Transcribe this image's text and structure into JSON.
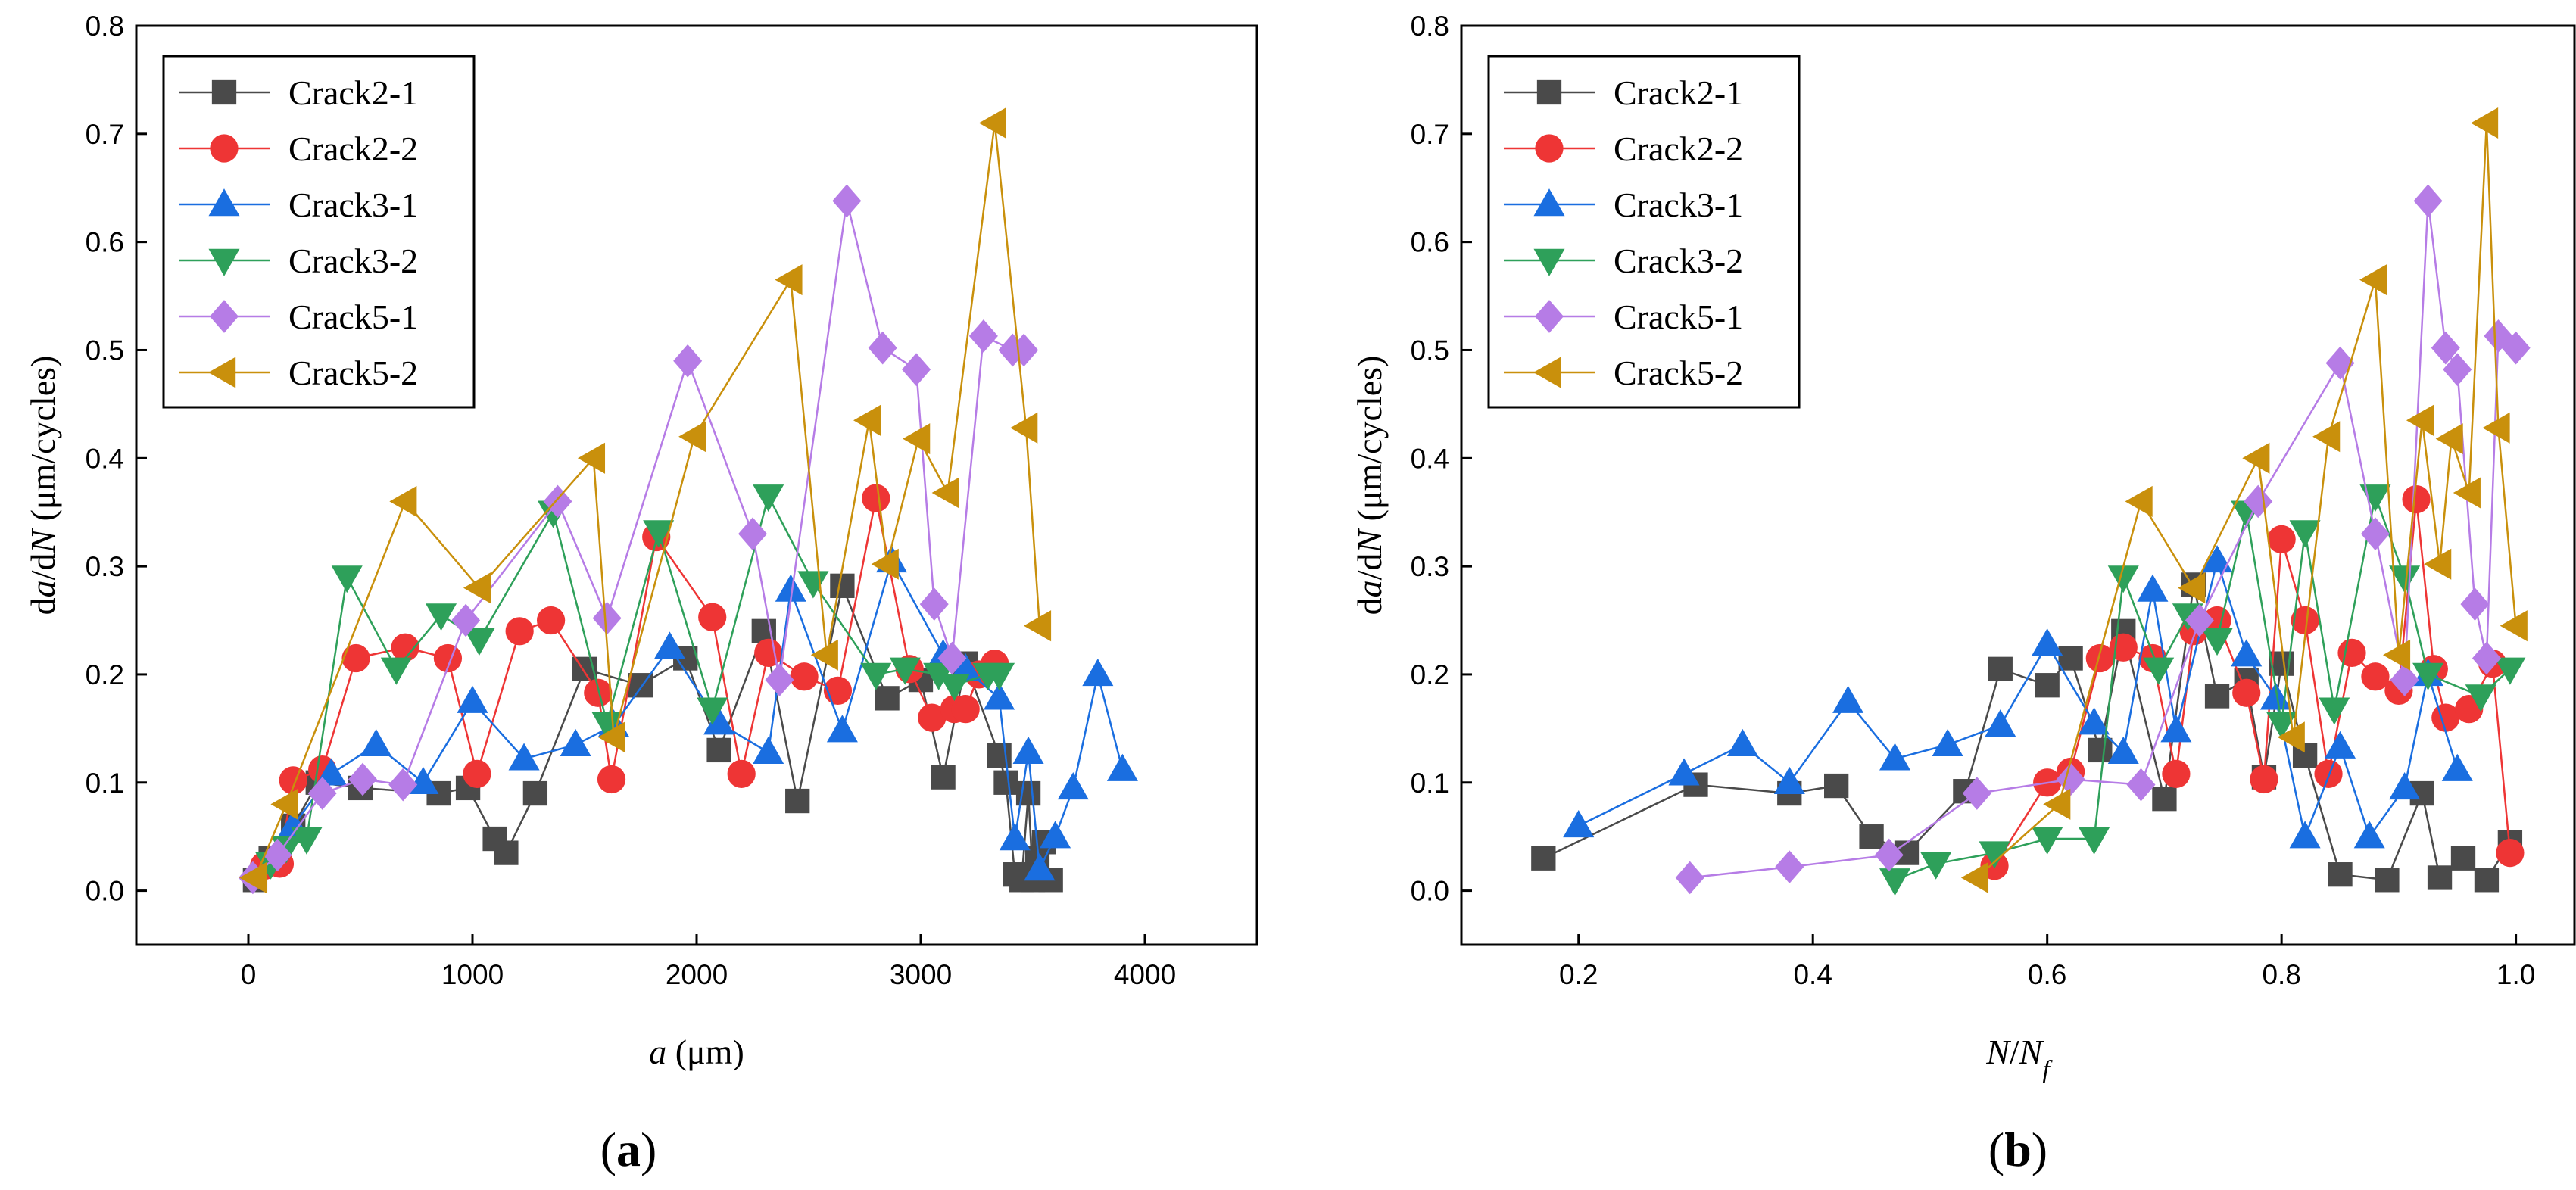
{
  "colors": {
    "Crack2-1": "#4a4a4a",
    "Crack2-2": "#ee3535",
    "Crack3-1": "#1a6ee0",
    "Crack3-2": "#2ea05a",
    "Crack5-1": "#b67ce6",
    "Crack5-2": "#c9900c"
  },
  "chart_data": [
    {
      "type": "line",
      "panel": "(a)",
      "panel_letter": "a",
      "xlabel_parts": {
        "italic": "a",
        "rest": " (μm)"
      },
      "ylabel_parts": {
        "pre": "d",
        "it1": "a",
        "mid": "/d",
        "it2": "N",
        "rest": " (μm/cycles)"
      },
      "xlim": [
        -500,
        4500
      ],
      "ylim": [
        -0.05,
        0.8
      ],
      "xticks": [
        0,
        1000,
        2000,
        3000,
        4000
      ],
      "xtick_labels": [
        "0",
        "1000",
        "2000",
        "3000",
        "4000"
      ],
      "yticks": [
        0.0,
        0.1,
        0.2,
        0.3,
        0.4,
        0.5,
        0.6,
        0.7,
        0.8
      ],
      "ytick_labels": [
        "0.0",
        "0.1",
        "0.2",
        "0.3",
        "0.4",
        "0.5",
        "0.6",
        "0.7",
        "0.8"
      ],
      "legend": "top-left",
      "series": [
        {
          "name": "Crack2-1",
          "marker": "square",
          "x": [
            30,
            100,
            200,
            310,
            500,
            850,
            980,
            1100,
            1150,
            1280,
            1500,
            1750,
            1950,
            2100,
            2300,
            2450,
            2650,
            2850,
            3000,
            3100,
            3200,
            3350,
            3380,
            3420,
            3450,
            3480,
            3500,
            3520,
            3550,
            3580
          ],
          "y": [
            0.01,
            0.03,
            0.06,
            0.1,
            0.095,
            0.09,
            0.095,
            0.048,
            0.035,
            0.09,
            0.205,
            0.19,
            0.215,
            0.13,
            0.24,
            0.083,
            0.282,
            0.178,
            0.195,
            0.105,
            0.21,
            0.125,
            0.1,
            0.015,
            0.01,
            0.09,
            0.01,
            0.03,
            0.045,
            0.01
          ]
        },
        {
          "name": "Crack2-2",
          "marker": "circle",
          "x": [
            70,
            140,
            200,
            330,
            480,
            700,
            890,
            1020,
            1210,
            1350,
            1560,
            1620,
            1820,
            2070,
            2200,
            2320,
            2480,
            2630,
            2800,
            2950,
            3050,
            3150,
            3200,
            3260,
            3330
          ],
          "y": [
            0.015,
            0.02,
            0.1,
            0.11,
            0.215,
            0.225,
            0.215,
            0.108,
            0.24,
            0.25,
            0.18,
            0.1,
            0.325,
            0.25,
            0.108,
            0.218,
            0.195,
            0.18,
            0.362,
            0.205,
            0.158,
            0.165,
            0.168,
            0.2,
            0.21
          ],
          "draw_y": [
            0.023,
            0.025,
            0.102,
            0.112,
            0.215,
            0.225,
            0.215,
            0.108,
            0.24,
            0.25,
            0.183,
            0.103,
            0.327,
            0.253,
            0.108,
            0.22,
            0.198,
            0.185,
            0.363,
            0.205,
            0.16,
            0.168,
            0.168,
            0.2,
            0.21
          ]
        },
        {
          "name": "Crack3-1",
          "marker": "triangle-up",
          "x": [
            200,
            370,
            570,
            780,
            1000,
            1230,
            1460,
            1630,
            1880,
            2100,
            2320,
            2420,
            2650,
            2870,
            3100,
            3200,
            3350,
            3420,
            3480,
            3530,
            3600,
            3680,
            3790,
            3900
          ],
          "y": [
            0.06,
            0.108,
            0.135,
            0.1,
            0.175,
            0.122,
            0.135,
            0.153,
            0.225,
            0.155,
            0.128,
            0.278,
            0.148,
            0.305,
            0.218,
            0.205,
            0.178,
            0.048,
            0.128,
            0.02,
            0.05,
            0.095,
            0.2,
            0.112
          ]
        },
        {
          "name": "Crack3-2",
          "marker": "triangle-down",
          "x": [
            100,
            170,
            260,
            440,
            660,
            860,
            1030,
            1360,
            1600,
            1830,
            2070,
            2320,
            2520,
            2800,
            2930,
            3080,
            3150,
            3300,
            3350
          ],
          "y": [
            0.025,
            0.04,
            0.048,
            0.29,
            0.205,
            0.255,
            0.232,
            0.35,
            0.155,
            0.332,
            0.168,
            0.365,
            0.285,
            0.2,
            0.205,
            0.2,
            0.19,
            0.2,
            0.2
          ]
        },
        {
          "name": "Crack5-1",
          "marker": "diamond",
          "x": [
            20,
            130,
            330,
            510,
            690,
            970,
            1380,
            1600,
            1960,
            2250,
            2370,
            2670,
            2830,
            2980,
            3060,
            3140,
            3280,
            3410,
            3460
          ],
          "y": [
            0.012,
            0.033,
            0.09,
            0.103,
            0.098,
            0.25,
            0.36,
            0.252,
            0.49,
            0.33,
            0.195,
            0.638,
            0.502,
            0.482,
            0.265,
            0.215,
            0.513,
            0.5,
            0.5
          ]
        },
        {
          "name": "Crack5-2",
          "marker": "triangle-left",
          "x": [
            30,
            170,
            700,
            1030,
            1540,
            1630,
            1990,
            2420,
            2580,
            2770,
            2850,
            2990,
            3120,
            3330,
            3470,
            3530
          ],
          "y": [
            0.012,
            0.08,
            0.36,
            0.28,
            0.4,
            0.142,
            0.42,
            0.565,
            0.218,
            0.435,
            0.302,
            0.418,
            0.368,
            0.71,
            0.428,
            0.245
          ]
        }
      ]
    },
    {
      "type": "line",
      "panel": "(b)",
      "panel_letter": "b",
      "xlabel_parts": {
        "it1": "N",
        "mid": "/",
        "it2": "N",
        "sub": "f"
      },
      "ylabel_parts": {
        "pre": "d",
        "it1": "a",
        "mid": "/d",
        "it2": "N",
        "rest": " (μm/cycles)"
      },
      "xlim": [
        0.1,
        1.05
      ],
      "ylim": [
        -0.05,
        0.8
      ],
      "xticks": [
        0.2,
        0.4,
        0.6,
        0.8,
        1.0
      ],
      "xtick_labels": [
        "0.2",
        "0.4",
        "0.6",
        "0.8",
        "1.0"
      ],
      "yticks": [
        0.0,
        0.1,
        0.2,
        0.3,
        0.4,
        0.5,
        0.6,
        0.7,
        0.8
      ],
      "ytick_labels": [
        "0.0",
        "0.1",
        "0.2",
        "0.3",
        "0.4",
        "0.5",
        "0.6",
        "0.7",
        "0.8"
      ],
      "legend": "top-left",
      "series": [
        {
          "name": "Crack2-1",
          "marker": "square",
          "x": [
            0.17,
            0.3,
            0.38,
            0.42,
            0.45,
            0.48,
            0.53,
            0.56,
            0.6,
            0.62,
            0.645,
            0.665,
            0.7,
            0.725,
            0.745,
            0.77,
            0.785,
            0.8,
            0.82,
            0.85,
            0.89,
            0.92,
            0.935,
            0.955,
            0.975,
            0.995
          ],
          "y": [
            0.03,
            0.098,
            0.09,
            0.097,
            0.05,
            0.035,
            0.092,
            0.205,
            0.19,
            0.215,
            0.13,
            0.24,
            0.085,
            0.283,
            0.18,
            0.195,
            0.105,
            0.21,
            0.125,
            0.015,
            0.01,
            0.09,
            0.012,
            0.03,
            0.01,
            0.045
          ]
        },
        {
          "name": "Crack2-2",
          "marker": "circle",
          "x": [
            0.555,
            0.6,
            0.62,
            0.645,
            0.665,
            0.69,
            0.71,
            0.725,
            0.745,
            0.77,
            0.785,
            0.8,
            0.82,
            0.84,
            0.86,
            0.88,
            0.9,
            0.915,
            0.93,
            0.94,
            0.96,
            0.98,
            0.995
          ],
          "y": [
            0.023,
            0.1,
            0.11,
            0.215,
            0.225,
            0.215,
            0.108,
            0.24,
            0.25,
            0.183,
            0.103,
            0.325,
            0.25,
            0.108,
            0.22,
            0.198,
            0.185,
            0.362,
            0.205,
            0.16,
            0.168,
            0.21,
            0.035
          ]
        },
        {
          "name": "Crack3-1",
          "marker": "triangle-up",
          "x": [
            0.2,
            0.29,
            0.34,
            0.38,
            0.43,
            0.47,
            0.515,
            0.56,
            0.6,
            0.64,
            0.665,
            0.69,
            0.71,
            0.745,
            0.77,
            0.795,
            0.82,
            0.85,
            0.875,
            0.905,
            0.925,
            0.95
          ],
          "y": [
            0.06,
            0.108,
            0.135,
            0.1,
            0.175,
            0.122,
            0.135,
            0.153,
            0.228,
            0.155,
            0.128,
            0.278,
            0.148,
            0.305,
            0.218,
            0.178,
            0.05,
            0.133,
            0.05,
            0.095,
            0.2,
            0.112
          ]
        },
        {
          "name": "Crack3-2",
          "marker": "triangle-down",
          "x": [
            0.47,
            0.505,
            0.555,
            0.6,
            0.64,
            0.665,
            0.695,
            0.72,
            0.745,
            0.77,
            0.8,
            0.82,
            0.845,
            0.88,
            0.905,
            0.925,
            0.97,
            0.995
          ],
          "y": [
            0.01,
            0.025,
            0.035,
            0.048,
            0.048,
            0.29,
            0.205,
            0.255,
            0.232,
            0.35,
            0.155,
            0.332,
            0.168,
            0.365,
            0.29,
            0.2,
            0.18,
            0.205
          ]
        },
        {
          "name": "Crack5-1",
          "marker": "diamond",
          "x": [
            0.295,
            0.38,
            0.465,
            0.54,
            0.62,
            0.68,
            0.73,
            0.78,
            0.85,
            0.88,
            0.905,
            0.925,
            0.94,
            0.95,
            0.965,
            0.975,
            0.985,
            1.0
          ],
          "y": [
            0.012,
            0.022,
            0.033,
            0.09,
            0.103,
            0.098,
            0.25,
            0.36,
            0.488,
            0.33,
            0.195,
            0.638,
            0.502,
            0.482,
            0.265,
            0.215,
            0.513,
            0.502
          ]
        },
        {
          "name": "Crack5-2",
          "marker": "triangle-left",
          "x": [
            0.54,
            0.61,
            0.68,
            0.725,
            0.78,
            0.81,
            0.84,
            0.88,
            0.9,
            0.92,
            0.935,
            0.945,
            0.96,
            0.975,
            0.985,
            1.0
          ],
          "y": [
            0.012,
            0.08,
            0.36,
            0.28,
            0.4,
            0.142,
            0.42,
            0.565,
            0.218,
            0.435,
            0.302,
            0.418,
            0.368,
            0.71,
            0.428,
            0.245
          ]
        }
      ]
    }
  ]
}
